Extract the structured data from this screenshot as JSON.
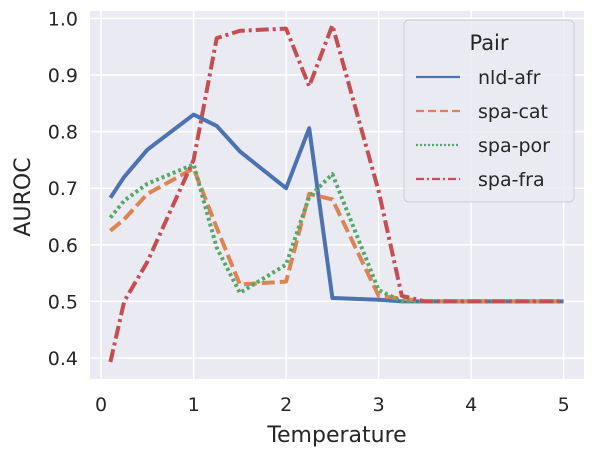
{
  "chart_data": {
    "type": "line",
    "xlabel": "Temperature",
    "ylabel": "AUROC",
    "xlim": [
      -0.12,
      5.22
    ],
    "ylim": [
      0.363,
      1.013
    ],
    "x_ticks": [
      0,
      1,
      2,
      3,
      4,
      5
    ],
    "y_ticks": [
      0.4,
      0.5,
      0.6,
      0.7,
      0.8,
      0.9,
      1.0
    ],
    "x_tick_labels": [
      "0",
      "1",
      "2",
      "3",
      "4",
      "5"
    ],
    "y_tick_labels": [
      "0.4",
      "0.5",
      "0.6",
      "0.7",
      "0.8",
      "0.9",
      "1.0"
    ],
    "grid": true,
    "legend": {
      "title": "Pair",
      "placement": "top-right"
    },
    "x": [
      0.1,
      0.25,
      0.5,
      1.0,
      1.25,
      1.5,
      2.0,
      2.25,
      2.5,
      3.0,
      3.25,
      3.5,
      4.0,
      5.0
    ],
    "series": [
      {
        "name": "nld-afr",
        "color": "#4c72b0",
        "dash": "solid",
        "values": [
          0.683,
          0.72,
          0.768,
          0.83,
          0.81,
          0.765,
          0.7,
          0.806,
          0.506,
          0.503,
          0.5,
          0.5,
          0.5,
          0.5
        ]
      },
      {
        "name": "spa-cat",
        "color": "#dd8452",
        "dash": "dashed",
        "values": [
          0.625,
          0.645,
          0.69,
          0.735,
          0.63,
          0.53,
          0.535,
          0.69,
          0.68,
          0.51,
          0.505,
          0.5,
          0.5,
          0.5
        ]
      },
      {
        "name": "spa-por",
        "color": "#55a868",
        "dash": "dotted",
        "values": [
          0.648,
          0.678,
          0.708,
          0.742,
          0.595,
          0.515,
          0.565,
          0.685,
          0.725,
          0.52,
          0.5,
          0.5,
          0.5,
          0.5
        ]
      },
      {
        "name": "spa-fra",
        "color": "#c44e52",
        "dash": "dashdot",
        "values": [
          0.393,
          0.5,
          0.57,
          0.75,
          0.965,
          0.978,
          0.982,
          0.88,
          0.988,
          0.695,
          0.51,
          0.5,
          0.5,
          0.5
        ]
      }
    ]
  }
}
